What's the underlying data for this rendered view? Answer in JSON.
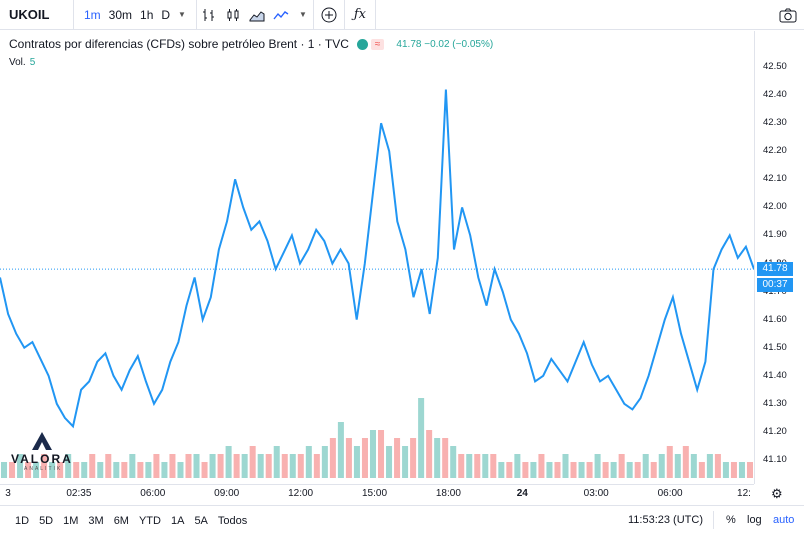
{
  "toolbar": {
    "symbol": "UKOIL",
    "intervals": [
      "1m",
      "30m",
      "1h",
      "D"
    ],
    "active_interval": "1m",
    "icons": [
      "bar-style-icon",
      "candles-icon",
      "area-icon",
      "line-icon",
      "add-compare-icon",
      "indicators-icon",
      "camera-icon"
    ]
  },
  "legend": {
    "title": "Contratos por diferencias (CFDs) sobre petróleo Brent · 1 · TVC",
    "last": "41.78",
    "change": "−0.02",
    "change_pct": "(−0.05%)",
    "quote_text": "41.78 −0.02 (−0.05%)",
    "volume_label": "Vol.",
    "volume_value": "5"
  },
  "colors": {
    "line": "#2196f3",
    "up": "#26a69a",
    "down": "#ef5350",
    "accent": "#2962ff"
  },
  "price_axis": {
    "ticks": [
      "42.50",
      "42.40",
      "42.30",
      "42.20",
      "42.10",
      "42.00",
      "41.90",
      "41.80",
      "41.70",
      "41.60",
      "41.50",
      "41.40",
      "41.30",
      "41.20",
      "41.10"
    ],
    "last_price_label": "41.78",
    "countdown_label": "00:37"
  },
  "time_axis": {
    "ticks": [
      "3",
      "02:35",
      "06:00",
      "09:00",
      "12:00",
      "15:00",
      "18:00",
      "24",
      "03:00",
      "06:00",
      "12:"
    ]
  },
  "bottom": {
    "ranges": [
      "1D",
      "5D",
      "1M",
      "3M",
      "6M",
      "YTD",
      "1A",
      "5A",
      "Todos"
    ],
    "clock": "11:53:23 (UTC)",
    "percent": "%",
    "log": "log",
    "auto": "auto"
  },
  "watermark": {
    "brand": "VALORA",
    "sub": "ANALITIK"
  },
  "chart_data": {
    "type": "line",
    "series": [
      {
        "values": [
          41.75,
          41.62,
          41.55,
          41.5,
          41.52,
          41.46,
          41.4,
          41.3,
          41.25,
          41.22,
          41.35,
          41.38,
          41.45,
          41.48,
          41.4,
          41.35,
          41.42,
          41.47,
          41.38,
          41.3,
          41.35,
          41.45,
          41.52,
          41.65,
          41.75,
          41.6,
          41.68,
          41.85,
          41.95,
          42.1,
          42.0,
          41.92,
          41.95,
          41.88,
          41.78,
          41.84,
          41.9,
          41.8,
          41.85,
          41.92,
          41.88,
          41.8,
          41.85,
          41.8,
          41.6,
          41.8,
          42.05,
          42.3,
          42.2,
          41.95,
          41.85,
          41.68,
          41.78,
          41.62,
          41.82,
          42.42,
          41.85,
          42.0,
          41.9,
          41.75,
          41.65,
          41.78,
          41.7,
          41.6,
          41.55,
          41.48,
          41.38,
          41.4,
          41.46,
          41.42,
          41.38,
          41.45,
          41.52,
          41.44,
          41.38,
          41.4,
          41.35,
          41.3,
          41.28,
          41.32,
          41.4,
          41.5,
          41.6,
          41.68,
          41.55,
          41.45,
          41.35,
          41.45,
          41.78,
          41.85,
          41.9,
          41.82,
          41.86,
          41.78
        ]
      }
    ],
    "ylim": [
      41.05,
      42.55
    ],
    "last": 41.78,
    "volume": [
      2,
      2,
      3,
      2,
      2,
      3,
      2,
      2,
      3,
      2,
      2,
      3,
      2,
      3,
      2,
      2,
      3,
      2,
      2,
      3,
      2,
      3,
      2,
      3,
      3,
      2,
      3,
      3,
      4,
      3,
      3,
      4,
      3,
      3,
      4,
      3,
      3,
      3,
      4,
      3,
      4,
      5,
      7,
      5,
      4,
      5,
      6,
      6,
      4,
      5,
      4,
      5,
      10,
      6,
      5,
      5,
      4,
      3,
      3,
      3,
      3,
      3,
      2,
      2,
      3,
      2,
      2,
      3,
      2,
      2,
      3,
      2,
      2,
      2,
      3,
      2,
      2,
      3,
      2,
      2,
      3,
      2,
      3,
      4,
      3,
      4,
      3,
      2,
      3,
      3,
      2,
      2,
      2,
      2
    ]
  }
}
